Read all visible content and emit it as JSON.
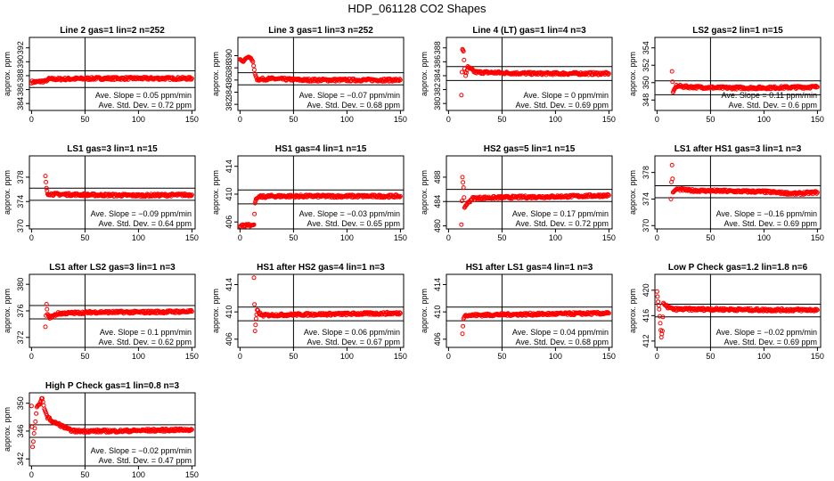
{
  "title": "HDP_061128  CO2 Shapes",
  "colors": {
    "points": "#ff0000",
    "lines": "#000000"
  },
  "chart_data": [
    {
      "type": "scatter",
      "title": "Line 2 gas=1 lin=2 n=252",
      "ylabel": "approx. ppm",
      "xlim": [
        -2,
        153
      ],
      "ylim": [
        383,
        393.5
      ],
      "xticks": [
        0,
        50,
        100,
        150
      ],
      "yticks": [
        384,
        386,
        388,
        390,
        392
      ],
      "hlines": [
        388.7,
        386.3
      ],
      "vline": 50,
      "slope": "0.05",
      "stddev": "0.72",
      "series": [
        {
          "values": [
            [
              0,
              387.1
            ],
            [
              5,
              387.1
            ],
            [
              10,
              387.2
            ],
            [
              14,
              387.2
            ],
            [
              15,
              387.5
            ],
            [
              25,
              387.5
            ],
            [
              60,
              387.6
            ],
            [
              100,
              387.6
            ],
            [
              150,
              387.6
            ]
          ]
        }
      ]
    },
    {
      "type": "scatter",
      "title": "Line 3 gas=1 lin=3 n=252",
      "ylabel": "approx. ppm",
      "xlim": [
        -2,
        153
      ],
      "ylim": [
        381,
        393
      ],
      "xticks": [
        0,
        50,
        100,
        150
      ],
      "yticks": [
        382,
        384,
        386,
        388,
        390
      ],
      "hlines": [
        387.2,
        385.2
      ],
      "vline": 50,
      "slope": "−0.07",
      "stddev": "0.68",
      "series": [
        {
          "values": [
            [
              0,
              389.4
            ],
            [
              3,
              389.0
            ],
            [
              5,
              389.5
            ],
            [
              8,
              389.8
            ],
            [
              10,
              389.6
            ],
            [
              12,
              389.0
            ],
            [
              14,
              387.0
            ],
            [
              16,
              386.1
            ],
            [
              30,
              386.2
            ],
            [
              60,
              386.0
            ],
            [
              100,
              386.0
            ],
            [
              150,
              386.0
            ]
          ]
        }
      ]
    },
    {
      "type": "scatter",
      "title": "Line 4 (LT) gas=1 lin=4 n=3",
      "ylabel": "approx. ppm",
      "xlim": [
        -2,
        153
      ],
      "ylim": [
        379,
        389.5
      ],
      "xticks": [
        0,
        50,
        100,
        150
      ],
      "yticks": [
        380,
        382,
        384,
        386,
        388
      ],
      "hlines": [
        385.3,
        383.3
      ],
      "vline": 50,
      "slope": "0",
      "stddev": "0.69",
      "series": [
        {
          "values": [
            [
              12,
              381.2
            ],
            [
              13,
              387.8
            ],
            [
              14,
              387.5
            ],
            [
              15,
              385.0
            ],
            [
              16,
              384.0
            ],
            [
              18,
              385.2
            ],
            [
              25,
              384.5
            ],
            [
              50,
              384.4
            ],
            [
              80,
              384.3
            ],
            [
              110,
              384.3
            ],
            [
              150,
              384.3
            ]
          ]
        }
      ]
    },
    {
      "type": "scatter",
      "title": "LS2 gas=2 lin=1 n=15",
      "ylabel": "approx. ppm",
      "xlim": [
        -2,
        153
      ],
      "ylim": [
        346.8,
        355.2
      ],
      "xticks": [
        0,
        50,
        100,
        150
      ],
      "yticks": [
        348,
        350,
        352,
        354
      ],
      "hlines": [
        350.2,
        348.6
      ],
      "vline": 50,
      "slope": "0.11",
      "stddev": "0.6",
      "series": [
        {
          "values": [
            [
              14,
              351.3
            ],
            [
              15,
              348.9
            ],
            [
              16,
              349.2
            ],
            [
              18,
              349.6
            ],
            [
              30,
              349.5
            ],
            [
              60,
              349.4
            ],
            [
              100,
              349.4
            ],
            [
              150,
              349.5
            ]
          ]
        }
      ]
    },
    {
      "type": "scatter",
      "title": "LS1 gas=3 lin=1 n=15",
      "ylabel": "approx. ppm",
      "xlim": [
        -2,
        153
      ],
      "ylim": [
        369.5,
        381.5
      ],
      "xticks": [
        0,
        50,
        100,
        150
      ],
      "yticks": [
        370,
        374,
        378
      ],
      "hlines": [
        376.2,
        374.2
      ],
      "vline": 50,
      "slope": "−0.09",
      "stddev": "0.64",
      "series": [
        {
          "values": [
            [
              13,
              378.2
            ],
            [
              14,
              376.2
            ],
            [
              15,
              375.3
            ],
            [
              20,
              375.2
            ],
            [
              50,
              375.1
            ],
            [
              100,
              375.0
            ],
            [
              150,
              375.1
            ]
          ]
        }
      ]
    },
    {
      "type": "scatter",
      "title": "HS1 gas=4 lin=1 n=15",
      "ylabel": "approx. ppm",
      "xlim": [
        -2,
        153
      ],
      "ylim": [
        405,
        415.5
      ],
      "xticks": [
        0,
        50,
        100,
        150
      ],
      "yticks": [
        406,
        410,
        414
      ],
      "hlines": [
        410.6,
        408.6
      ],
      "vline": 50,
      "slope": "−0.03",
      "stddev": "0.65",
      "series": [
        {
          "values": [
            [
              0,
              405.5
            ],
            [
              5,
              405.5
            ],
            [
              10,
              405.5
            ],
            [
              13,
              405.6
            ],
            [
              14,
              408.7
            ],
            [
              15,
              409.3
            ],
            [
              18,
              409.6
            ],
            [
              30,
              409.7
            ],
            [
              60,
              409.7
            ],
            [
              100,
              409.7
            ],
            [
              150,
              409.7
            ]
          ]
        }
      ]
    },
    {
      "type": "scatter",
      "title": "HS2 gas=5 lin=1 n=15",
      "ylabel": "approx. ppm",
      "xlim": [
        -2,
        153
      ],
      "ylim": [
        479.5,
        491.5
      ],
      "xticks": [
        0,
        50,
        100,
        150
      ],
      "yticks": [
        480,
        484,
        488
      ],
      "hlines": [
        486,
        484
      ],
      "vline": 50,
      "slope": "0.17",
      "stddev": "0.72",
      "series": [
        {
          "values": [
            [
              12,
              480.2
            ],
            [
              13,
              488.0
            ],
            [
              14,
              486.3
            ],
            [
              15,
              483.0
            ],
            [
              16,
              483.3
            ],
            [
              18,
              483.7
            ],
            [
              22,
              484.5
            ],
            [
              30,
              484.6
            ],
            [
              60,
              484.7
            ],
            [
              100,
              484.8
            ],
            [
              150,
              485.0
            ]
          ]
        }
      ]
    },
    {
      "type": "scatter",
      "title": "LS1 after HS1 gas=3 lin=1 n=3",
      "ylabel": "approx. ppm",
      "xlim": [
        -2,
        153
      ],
      "ylim": [
        369.5,
        380.5
      ],
      "xticks": [
        0,
        50,
        100,
        150
      ],
      "yticks": [
        370,
        374,
        378
      ],
      "hlines": [
        376.0,
        374.2
      ],
      "vline": 50,
      "slope": "−0.16",
      "stddev": "0.69",
      "series": [
        {
          "values": [
            [
              13,
              374.0
            ],
            [
              14,
              379.1
            ],
            [
              15,
              375.0
            ],
            [
              18,
              375.5
            ],
            [
              30,
              375.3
            ],
            [
              60,
              375.2
            ],
            [
              100,
              375.1
            ],
            [
              130,
              374.8
            ],
            [
              150,
              375.0
            ]
          ]
        }
      ]
    },
    {
      "type": "scatter",
      "title": "LS1 after LS2 gas=3 lin=1 n=3",
      "ylabel": "approx. ppm",
      "xlim": [
        -2,
        153
      ],
      "ylim": [
        370.5,
        381.5
      ],
      "xticks": [
        0,
        50,
        100,
        150
      ],
      "yticks": [
        372,
        376,
        380
      ],
      "hlines": [
        376.8,
        374.8
      ],
      "vline": 50,
      "slope": "0.1",
      "stddev": "0.62",
      "series": [
        {
          "values": [
            [
              13,
              373.6
            ],
            [
              14,
              377.0
            ],
            [
              15,
              375.5
            ],
            [
              17,
              375.0
            ],
            [
              25,
              375.6
            ],
            [
              60,
              375.8
            ],
            [
              100,
              375.8
            ],
            [
              150,
              375.9
            ]
          ]
        }
      ]
    },
    {
      "type": "scatter",
      "title": "HS1 after HS2 gas=4 lin=1 n=3",
      "ylabel": "approx. ppm",
      "xlim": [
        -2,
        153
      ],
      "ylim": [
        404.8,
        415.5
      ],
      "xticks": [
        0,
        50,
        100,
        150
      ],
      "yticks": [
        406,
        410,
        414
      ],
      "hlines": [
        410.7,
        408.7
      ],
      "vline": 50,
      "slope": "0.06",
      "stddev": "0.67",
      "series": [
        {
          "values": [
            [
              13,
              415.0
            ],
            [
              14,
              407.2
            ],
            [
              15,
              409.0
            ],
            [
              16,
              410.2
            ],
            [
              20,
              409.5
            ],
            [
              50,
              409.6
            ],
            [
              100,
              409.7
            ],
            [
              150,
              409.8
            ]
          ]
        }
      ]
    },
    {
      "type": "scatter",
      "title": "HS1 after LS1 gas=4 lin=1 n=3",
      "ylabel": "approx. ppm",
      "xlim": [
        -2,
        153
      ],
      "ylim": [
        404.8,
        415.5
      ],
      "xticks": [
        0,
        50,
        100,
        150
      ],
      "yticks": [
        406,
        410,
        414
      ],
      "hlines": [
        410.7,
        408.7
      ],
      "vline": 50,
      "slope": "0.04",
      "stddev": "0.68",
      "series": [
        {
          "values": [
            [
              13,
              406.8
            ],
            [
              14,
              409.0
            ],
            [
              16,
              409.6
            ],
            [
              20,
              409.5
            ],
            [
              50,
              409.6
            ],
            [
              100,
              409.7
            ],
            [
              150,
              409.8
            ]
          ]
        }
      ]
    },
    {
      "type": "scatter",
      "title": "Low P Check gas=1.2 lin=1.8 n=6",
      "ylabel": "approx. ppm",
      "xlim": [
        -2,
        153
      ],
      "ylim": [
        411,
        422.5
      ],
      "xticks": [
        0,
        50,
        100,
        150
      ],
      "yticks": [
        412,
        416,
        420
      ],
      "hlines": [
        417.8,
        415.8
      ],
      "vline": 50,
      "slope": "−0.02",
      "stddev": "0.69",
      "series": [
        {
          "values": [
            [
              0,
              419.8
            ],
            [
              1,
              418.2
            ],
            [
              2,
              417.0
            ],
            [
              3,
              414.8
            ],
            [
              4,
              412.6
            ],
            [
              5,
              413.6
            ],
            [
              6,
              418.0
            ],
            [
              8,
              417.5
            ],
            [
              15,
              417.0
            ],
            [
              50,
              417.0
            ],
            [
              100,
              416.9
            ],
            [
              150,
              416.9
            ]
          ]
        }
      ]
    },
    {
      "type": "scatter",
      "title": "High P Check gas=1 lin=0.8 n=3",
      "ylabel": "approx. ppm",
      "xlim": [
        -2,
        153
      ],
      "ylim": [
        341,
        351.5
      ],
      "xticks": [
        0,
        50,
        100,
        150
      ],
      "yticks": [
        342,
        346,
        350
      ],
      "hlines": [
        346.9,
        345.1
      ],
      "vline": 50,
      "slope": "−0.02",
      "stddev": "0.47",
      "series": [
        {
          "values": [
            [
              0,
              349.6
            ],
            [
              1,
              343.6
            ],
            [
              5,
              349.3
            ],
            [
              10,
              350.7
            ],
            [
              12,
              349.2
            ],
            [
              15,
              348.0
            ],
            [
              20,
              347.3
            ],
            [
              25,
              347.0
            ],
            [
              30,
              346.6
            ],
            [
              35,
              346.2
            ],
            [
              40,
              346.0
            ],
            [
              50,
              346.0
            ],
            [
              80,
              346.0
            ],
            [
              110,
              346.1
            ],
            [
              150,
              346.2
            ]
          ]
        }
      ]
    }
  ]
}
